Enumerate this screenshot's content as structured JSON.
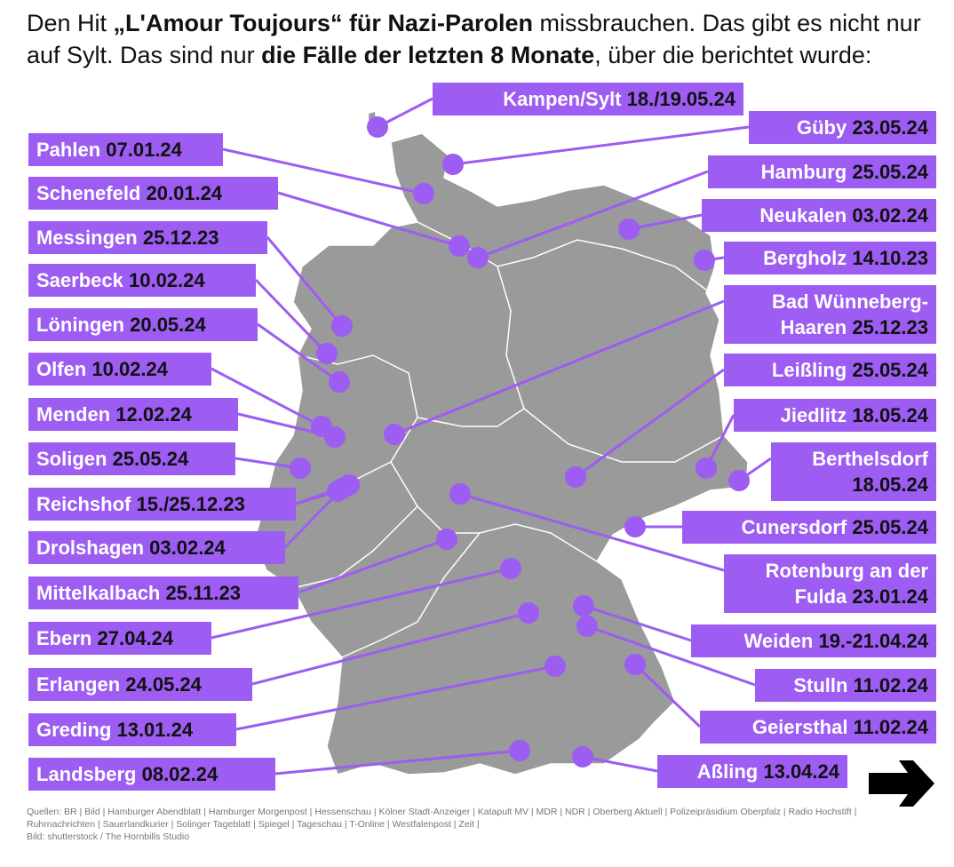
{
  "header": {
    "title": [
      {
        "text": "Den Hit ",
        "bold": false
      },
      {
        "text": "„L'Amour Toujours“ für Nazi-Parolen",
        "bold": true
      },
      {
        "text": " missbrauchen. Das gibt es nicht nur auf Sylt. Das sind nur ",
        "bold": false
      },
      {
        "text": "die Fälle der letzten 8 Monate",
        "bold": true
      },
      {
        "text": ", über die berichtet wurde:",
        "bold": false
      }
    ]
  },
  "labels": [
    {
      "place": "Pahlen",
      "date": "07.01.24"
    },
    {
      "place": "Schenefeld",
      "date": "20.01.24"
    },
    {
      "place": "Messingen",
      "date": "25.12.23"
    },
    {
      "place": "Saerbeck",
      "date": "10.02.24"
    },
    {
      "place": "Löningen",
      "date": "20.05.24"
    },
    {
      "place": "Olfen",
      "date": "10.02.24"
    },
    {
      "place": "Menden",
      "date": "12.02.24"
    },
    {
      "place": "Soligen",
      "date": "25.05.24"
    },
    {
      "place": "Reichshof",
      "date": "15./25.12.23"
    },
    {
      "place": "Drolshagen",
      "date": "03.02.24"
    },
    {
      "place": "Mittelkalbach",
      "date": "25.11.23"
    },
    {
      "place": "Ebern",
      "date": "27.04.24"
    },
    {
      "place": "Erlangen",
      "date": "24.05.24"
    },
    {
      "place": "Greding",
      "date": "13.01.24"
    },
    {
      "place": "Landsberg",
      "date": "08.02.24"
    },
    {
      "place": "Kampen/Sylt",
      "date": "18./19.05.24"
    },
    {
      "place": "Güby",
      "date": "23.05.24"
    },
    {
      "place": "Hamburg",
      "date": "25.05.24"
    },
    {
      "place": "Neukalen",
      "date": "03.02.24"
    },
    {
      "place": "Bergholz",
      "date": "14.10.23"
    },
    {
      "place": "Bad Wünneberg-Haaren",
      "date": "25.12.23"
    },
    {
      "place": "Leißling",
      "date": "25.05.24"
    },
    {
      "place": "Jiedlitz",
      "date": "18.05.24"
    },
    {
      "place": "Berthelsdorf",
      "date": "18.05.24"
    },
    {
      "place": "Cunersdorf",
      "date": "25.05.24"
    },
    {
      "place": "Rotenburg an der Fulda",
      "date": "23.01.24"
    },
    {
      "place": "Weiden",
      "date": "19.-21.04.24"
    },
    {
      "place": "Stulln",
      "date": "11.02.24"
    },
    {
      "place": "Geiersthal",
      "date": "11.02.24"
    },
    {
      "place": "Aßling",
      "date": "13.04.24"
    }
  ],
  "footer": {
    "sources": "Quellen: BR | Bild | Hamburger Abendblatt | Hamburger Morgenpost | Hessenschau | Kölner Stadt-Anzeiger | Katapult MV | MDR | NDR | Oberberg Aktuell | Polizeipräsidium Oberpfalz | Radio Hochstift | Ruhrnachrichten | Sauerlandkurier | Solinger Tageblatt | Spiegel | Tageschau | T-Online | Westfalenpost | Zeit |",
    "credit": "Bild: shutterstock / The Hornbills Studio"
  }
}
